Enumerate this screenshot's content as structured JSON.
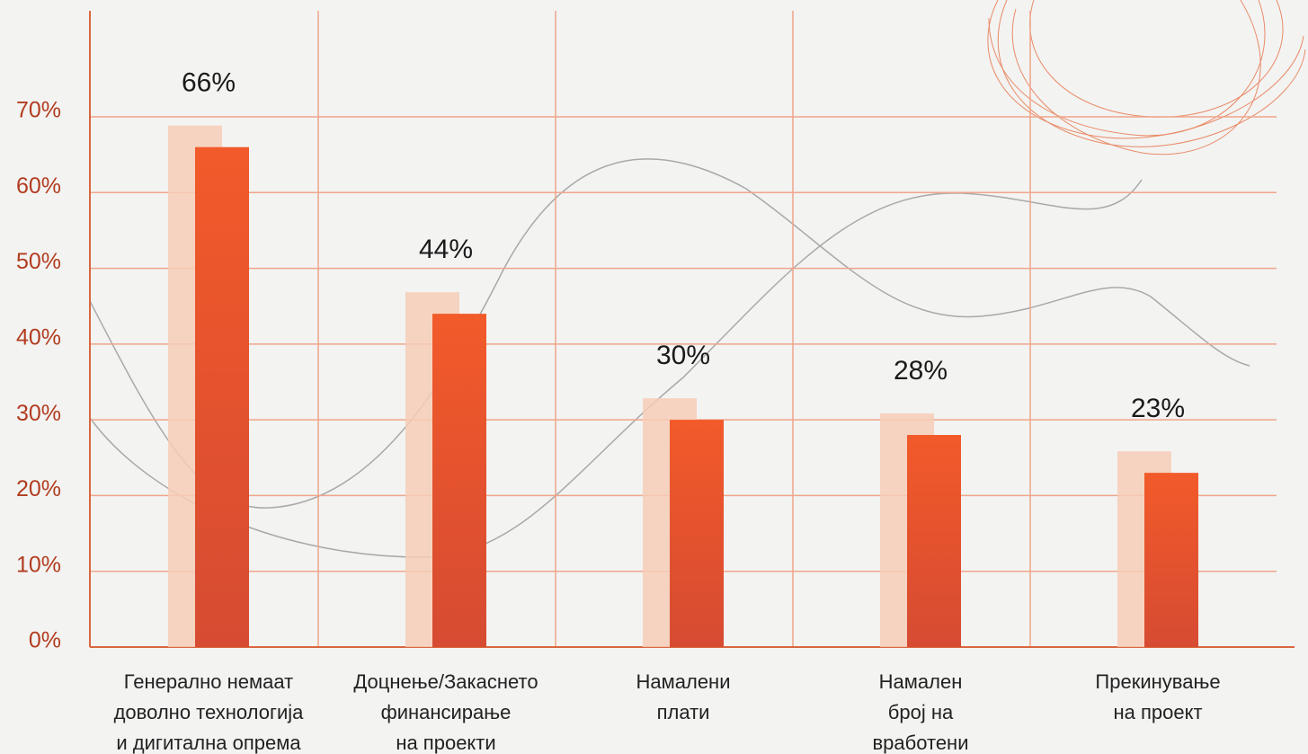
{
  "chart_data": {
    "type": "bar",
    "categories": [
      [
        "Генерално немаат",
        "доволно технологија",
        "и дигитална опрема"
      ],
      [
        "Доцнење/Закаснето",
        "финансирање",
        "на проекти"
      ],
      [
        "Намалени",
        "плати"
      ],
      [
        "Намален",
        "број на",
        "вработени"
      ],
      [
        "Прекинување",
        "на проект"
      ]
    ],
    "values": [
      66,
      44,
      30,
      28,
      23
    ],
    "value_labels": [
      "66%",
      "44%",
      "30%",
      "28%",
      "23%"
    ],
    "color": "#ee5a2c",
    "ylim": [
      0,
      84
    ],
    "yticks": [
      {
        "value": 0,
        "label": "0%"
      },
      {
        "value": 10,
        "label": "10%"
      },
      {
        "value": 20,
        "label": "20%"
      },
      {
        "value": 30,
        "label": "30%"
      },
      {
        "value": 40,
        "label": "40%"
      },
      {
        "value": 50,
        "label": "50%"
      },
      {
        "value": 60,
        "label": "60%"
      },
      {
        "value": 70,
        "label": "70%"
      }
    ],
    "grid": true
  }
}
